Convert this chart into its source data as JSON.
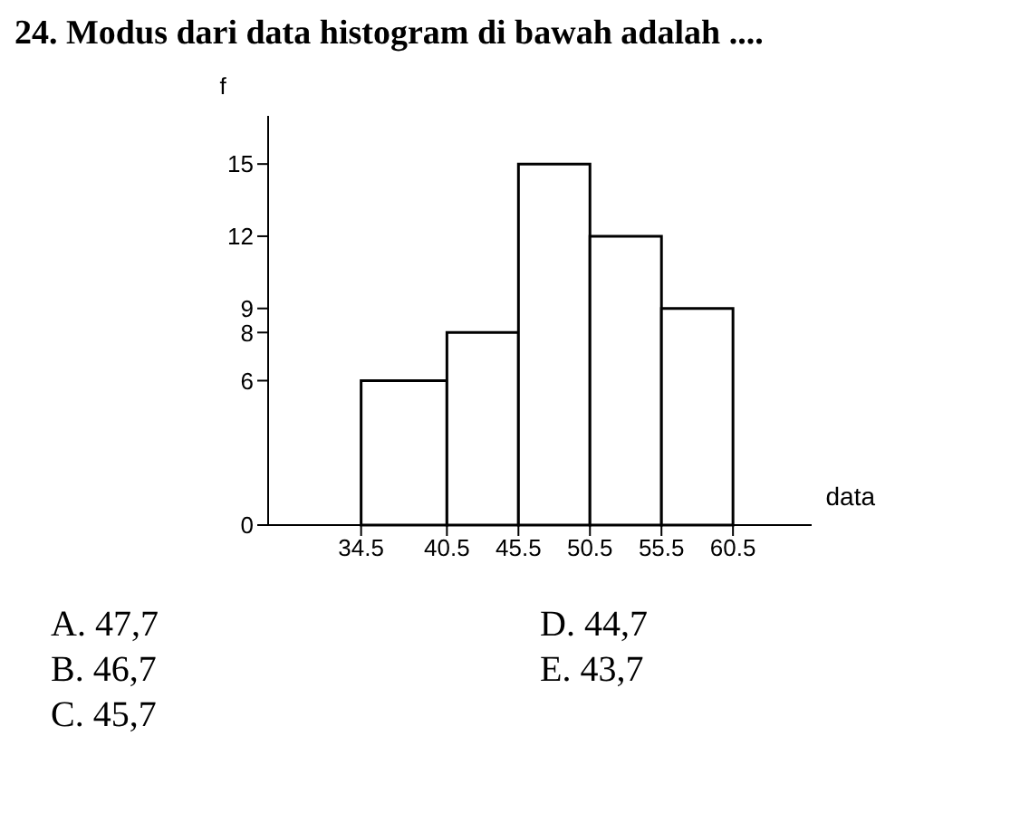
{
  "chart_data": {
    "type": "histogram",
    "title": "24. Modus dari data histogram di bawah adalah ....",
    "xlabel": "data",
    "ylabel": "f",
    "bins": [
      34.5,
      40.5,
      45.5,
      50.5,
      55.5,
      60.5
    ],
    "values": [
      6,
      8,
      15,
      12,
      9
    ],
    "color": "#ffffff",
    "xlim": [
      28,
      66
    ],
    "xticks": [
      34.5,
      40.5,
      45.5,
      50.5,
      55.5,
      60.5
    ],
    "ylim": [
      0,
      17
    ],
    "yticks": [
      0,
      6,
      8,
      9,
      12,
      15
    ],
    "grid": false,
    "annotations": [
      "A. 47,7",
      "D. 44,7",
      "B. 46,7",
      "E. 43,7",
      "C. 45,7"
    ]
  }
}
